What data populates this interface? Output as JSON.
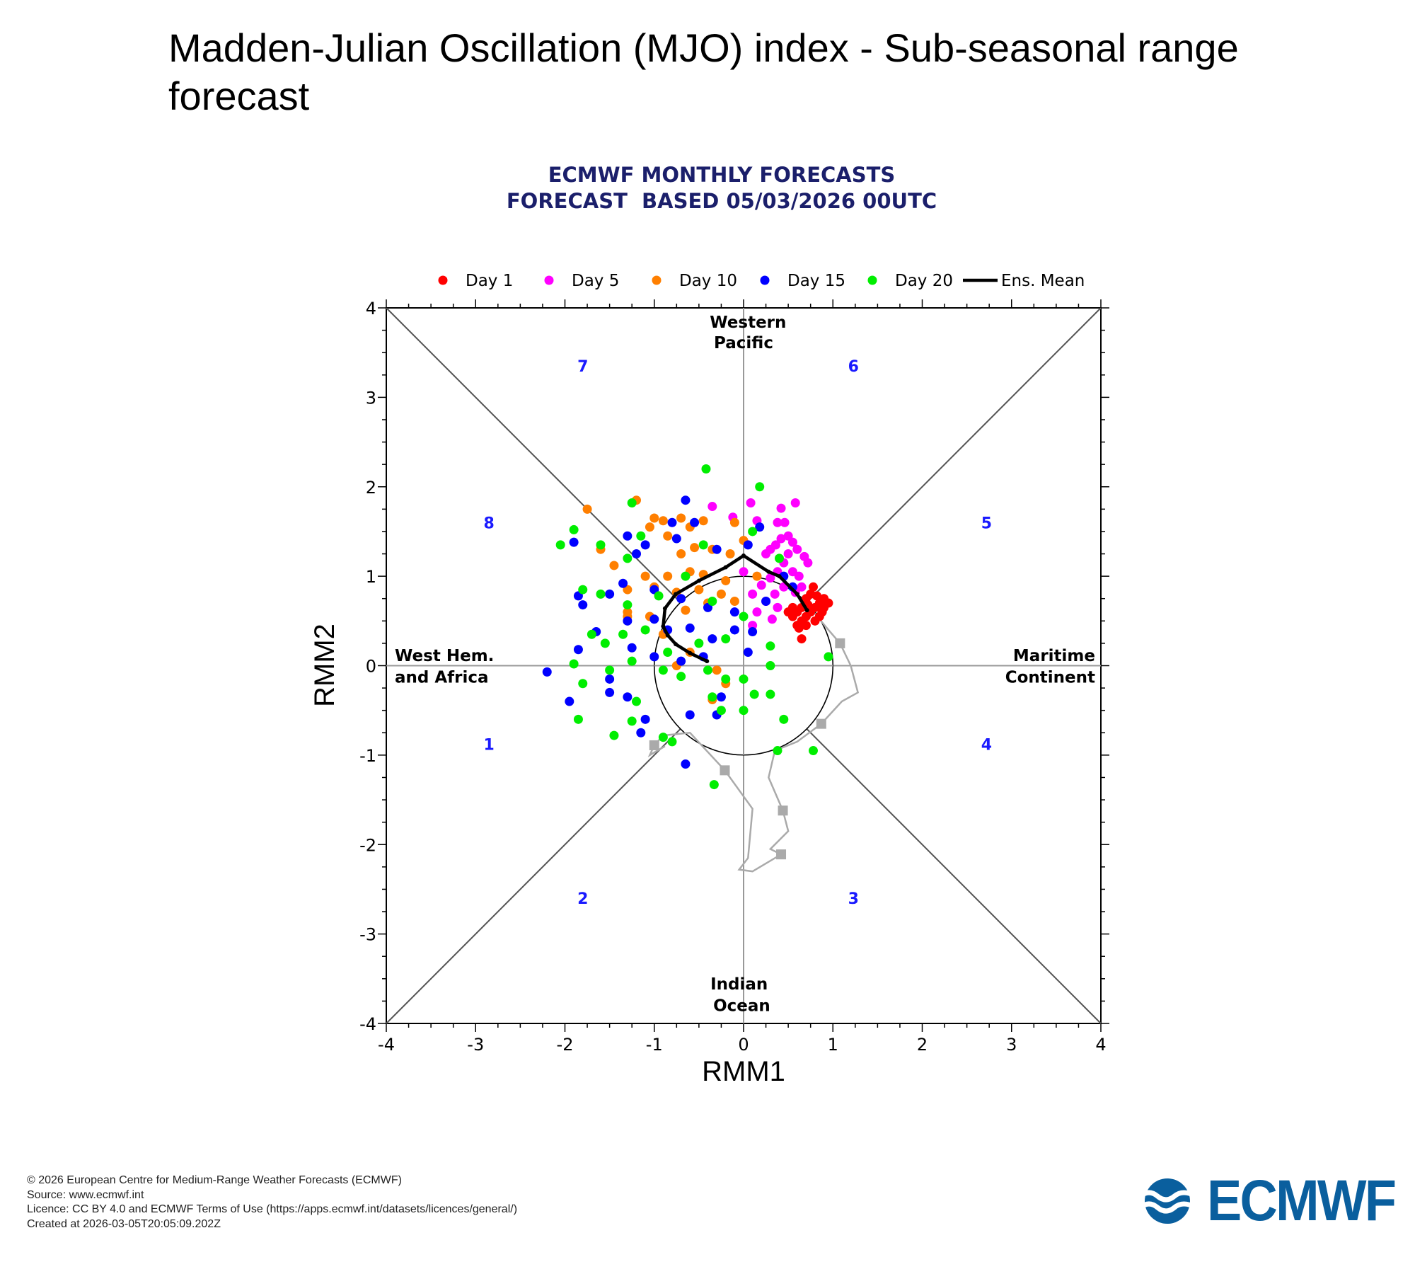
{
  "page_title": "Madden-Julian Oscillation (MJO) index - Sub-seasonal range forecast",
  "footer": {
    "lines": [
      "© 2026 European Centre for Medium-Range Weather Forecasts (ECMWF)",
      "Source: www.ecmwf.int",
      "Licence: CC BY 4.0 and ECMWF Terms of Use (https://apps.ecmwf.int/datasets/licences/general/)",
      "Created at 2026-03-05T20:05:09.202Z"
    ],
    "logo_text": "ECMWF"
  },
  "chart_data": {
    "type": "scatter",
    "title": "ECMWF MONTHLY FORECASTS",
    "subtitle": "FORECAST  BASED 05/03/2026 00UTC",
    "xlabel": "RMM1",
    "ylabel": "RMM2",
    "xlim": [
      -4,
      4
    ],
    "ylim": [
      -4,
      4
    ],
    "xticks": [
      "-4",
      "-3",
      "-2",
      "-1",
      "0",
      "1",
      "2",
      "3",
      "4"
    ],
    "yticks": [
      "-4",
      "-3",
      "-2",
      "-1",
      "0",
      "1",
      "2",
      "3",
      "4"
    ],
    "legend_position": "top",
    "regions": {
      "top": [
        "Western",
        "Pacific"
      ],
      "bottom": [
        "Indian",
        "Ocean"
      ],
      "left": [
        "West Hem.",
        "and Africa"
      ],
      "right": [
        "Maritime",
        "Continent"
      ]
    },
    "phases": [
      {
        "label": "1",
        "x": -2.85,
        "y": -0.88
      },
      {
        "label": "2",
        "x": -1.8,
        "y": -2.6
      },
      {
        "label": "3",
        "x": 1.23,
        "y": -2.6
      },
      {
        "label": "4",
        "x": 2.72,
        "y": -0.88
      },
      {
        "label": "5",
        "x": 2.72,
        "y": 1.6
      },
      {
        "label": "6",
        "x": 1.23,
        "y": 3.35
      },
      {
        "label": "7",
        "x": -1.8,
        "y": 3.35
      },
      {
        "label": "8",
        "x": -2.85,
        "y": 1.6
      }
    ],
    "series": [
      {
        "name": "Day 1",
        "color": "#ff0000",
        "points": [
          [
            0.55,
            0.55
          ],
          [
            0.6,
            0.6
          ],
          [
            0.65,
            0.5
          ],
          [
            0.7,
            0.55
          ],
          [
            0.75,
            0.6
          ],
          [
            0.8,
            0.65
          ],
          [
            0.85,
            0.7
          ],
          [
            0.9,
            0.65
          ],
          [
            0.95,
            0.7
          ],
          [
            0.75,
            0.8
          ],
          [
            0.7,
            0.75
          ],
          [
            0.65,
            0.65
          ],
          [
            0.6,
            0.45
          ],
          [
            0.7,
            0.45
          ],
          [
            0.8,
            0.5
          ],
          [
            0.85,
            0.55
          ],
          [
            0.9,
            0.75
          ],
          [
            0.78,
            0.88
          ],
          [
            0.55,
            0.65
          ],
          [
            0.5,
            0.6
          ],
          [
            0.65,
            0.3
          ],
          [
            0.62,
            0.42
          ],
          [
            0.88,
            0.6
          ],
          [
            0.72,
            0.68
          ],
          [
            0.82,
            0.78
          ]
        ]
      },
      {
        "name": "Day 5",
        "color": "#ff00ff",
        "points": [
          [
            0.08,
            1.82
          ],
          [
            0.58,
            1.82
          ],
          [
            0.42,
            1.76
          ],
          [
            -0.12,
            1.66
          ],
          [
            0.15,
            1.62
          ],
          [
            0.38,
            1.6
          ],
          [
            0.46,
            1.6
          ],
          [
            0.5,
            1.45
          ],
          [
            0.42,
            1.42
          ],
          [
            0.36,
            1.35
          ],
          [
            0.55,
            1.38
          ],
          [
            0.6,
            1.3
          ],
          [
            0.3,
            1.3
          ],
          [
            0.25,
            1.25
          ],
          [
            0.5,
            1.25
          ],
          [
            0.68,
            1.22
          ],
          [
            0.72,
            1.15
          ],
          [
            0.45,
            1.15
          ],
          [
            0.55,
            1.05
          ],
          [
            0.62,
            1.0
          ],
          [
            0.38,
            1.05
          ],
          [
            0.3,
            0.98
          ],
          [
            0.2,
            0.9
          ],
          [
            0.45,
            0.88
          ],
          [
            0.58,
            0.82
          ],
          [
            0.1,
            0.8
          ],
          [
            0.25,
            0.72
          ],
          [
            0.38,
            0.65
          ],
          [
            0.15,
            0.6
          ],
          [
            0.32,
            0.52
          ],
          [
            0.1,
            0.45
          ],
          [
            -0.35,
            1.78
          ],
          [
            0.0,
            1.05
          ],
          [
            0.65,
            0.88
          ],
          [
            0.35,
            0.8
          ]
        ]
      },
      {
        "name": "Day 10",
        "color": "#ff7f00",
        "points": [
          [
            -1.75,
            1.75
          ],
          [
            -1.2,
            1.85
          ],
          [
            -0.7,
            1.65
          ],
          [
            -0.45,
            1.62
          ],
          [
            -1.0,
            1.65
          ],
          [
            -0.9,
            1.62
          ],
          [
            -1.05,
            1.55
          ],
          [
            -0.6,
            1.55
          ],
          [
            -0.1,
            1.6
          ],
          [
            -1.6,
            1.3
          ],
          [
            -1.45,
            1.12
          ],
          [
            -0.85,
            1.45
          ],
          [
            -0.55,
            1.32
          ],
          [
            -0.7,
            1.25
          ],
          [
            -0.35,
            1.3
          ],
          [
            0.0,
            1.4
          ],
          [
            -0.15,
            1.25
          ],
          [
            -1.1,
            1.0
          ],
          [
            -0.85,
            1.0
          ],
          [
            -0.6,
            1.05
          ],
          [
            -0.45,
            1.02
          ],
          [
            -0.2,
            0.95
          ],
          [
            -1.3,
            0.85
          ],
          [
            -1.0,
            0.88
          ],
          [
            -0.75,
            0.82
          ],
          [
            -0.5,
            0.85
          ],
          [
            -0.25,
            0.8
          ],
          [
            -1.3,
            0.6
          ],
          [
            -1.05,
            0.55
          ],
          [
            -0.65,
            0.62
          ],
          [
            -0.4,
            0.7
          ],
          [
            -0.1,
            0.72
          ],
          [
            -1.3,
            0.55
          ],
          [
            -0.9,
            0.35
          ],
          [
            -0.6,
            0.15
          ],
          [
            -0.3,
            -0.05
          ],
          [
            -0.2,
            -0.2
          ],
          [
            -0.35,
            -0.38
          ],
          [
            -0.75,
            0.0
          ],
          [
            0.15,
            1.0
          ]
        ]
      },
      {
        "name": "Day 15",
        "color": "#0000ff",
        "points": [
          [
            -0.65,
            1.85
          ],
          [
            -0.55,
            1.6
          ],
          [
            -0.8,
            1.6
          ],
          [
            -1.3,
            1.45
          ],
          [
            -1.1,
            1.35
          ],
          [
            -1.9,
            1.38
          ],
          [
            -1.2,
            1.25
          ],
          [
            -0.75,
            1.42
          ],
          [
            -0.3,
            1.3
          ],
          [
            0.05,
            1.35
          ],
          [
            0.18,
            1.55
          ],
          [
            -1.35,
            0.92
          ],
          [
            -1.5,
            0.8
          ],
          [
            -1.0,
            0.85
          ],
          [
            -0.7,
            0.75
          ],
          [
            -0.4,
            0.65
          ],
          [
            -0.1,
            0.6
          ],
          [
            0.25,
            0.72
          ],
          [
            0.55,
            0.88
          ],
          [
            0.45,
            1.0
          ],
          [
            -1.85,
            0.78
          ],
          [
            -1.8,
            0.68
          ],
          [
            -1.65,
            0.38
          ],
          [
            -1.3,
            0.5
          ],
          [
            -1.0,
            0.52
          ],
          [
            -0.85,
            0.4
          ],
          [
            -0.6,
            0.42
          ],
          [
            -0.35,
            0.3
          ],
          [
            -0.1,
            0.4
          ],
          [
            0.1,
            0.38
          ],
          [
            -1.85,
            0.18
          ],
          [
            -1.25,
            0.2
          ],
          [
            -1.0,
            0.1
          ],
          [
            -0.7,
            0.05
          ],
          [
            -0.45,
            0.1
          ],
          [
            0.05,
            0.15
          ],
          [
            -2.2,
            -0.07
          ],
          [
            -1.5,
            -0.15
          ],
          [
            -1.3,
            -0.35
          ],
          [
            -1.5,
            -0.3
          ],
          [
            -1.95,
            -0.4
          ],
          [
            -0.6,
            -0.55
          ],
          [
            -0.25,
            -0.35
          ],
          [
            -1.1,
            -0.6
          ],
          [
            -0.65,
            -1.1
          ],
          [
            -1.15,
            -0.75
          ],
          [
            -0.3,
            -0.55
          ]
        ]
      },
      {
        "name": "Day 20",
        "color": "#00ee00",
        "points": [
          [
            -0.42,
            2.2
          ],
          [
            0.18,
            2.0
          ],
          [
            -1.25,
            1.82
          ],
          [
            -1.9,
            1.52
          ],
          [
            -2.05,
            1.35
          ],
          [
            -1.6,
            1.35
          ],
          [
            -1.3,
            1.2
          ],
          [
            -1.15,
            1.45
          ],
          [
            -0.45,
            1.35
          ],
          [
            0.1,
            1.5
          ],
          [
            0.4,
            1.2
          ],
          [
            -1.8,
            0.85
          ],
          [
            -1.6,
            0.8
          ],
          [
            -1.3,
            0.68
          ],
          [
            -0.95,
            0.78
          ],
          [
            -0.65,
            1.0
          ],
          [
            -0.35,
            0.72
          ],
          [
            0.0,
            0.55
          ],
          [
            -1.7,
            0.35
          ],
          [
            -1.55,
            0.25
          ],
          [
            -1.35,
            0.35
          ],
          [
            -1.1,
            0.4
          ],
          [
            -0.85,
            0.15
          ],
          [
            -0.5,
            0.25
          ],
          [
            -0.2,
            0.3
          ],
          [
            0.3,
            0.22
          ],
          [
            -1.9,
            0.02
          ],
          [
            -1.5,
            -0.05
          ],
          [
            -1.25,
            0.05
          ],
          [
            -0.9,
            -0.05
          ],
          [
            -0.7,
            -0.12
          ],
          [
            -0.4,
            -0.05
          ],
          [
            -0.2,
            -0.15
          ],
          [
            0.3,
            0.0
          ],
          [
            -1.8,
            -0.2
          ],
          [
            -1.2,
            -0.4
          ],
          [
            -0.35,
            -0.35
          ],
          [
            0.0,
            -0.15
          ],
          [
            0.3,
            -0.32
          ],
          [
            0.12,
            -0.32
          ],
          [
            -1.85,
            -0.6
          ],
          [
            -1.45,
            -0.78
          ],
          [
            -1.25,
            -0.62
          ],
          [
            -0.9,
            -0.8
          ],
          [
            -0.8,
            -0.85
          ],
          [
            -0.25,
            -0.5
          ],
          [
            0.95,
            0.1
          ],
          [
            0.45,
            -0.6
          ],
          [
            0.38,
            -0.95
          ],
          [
            0.78,
            -0.95
          ],
          [
            -0.33,
            -1.33
          ],
          [
            0.0,
            -0.5
          ]
        ]
      }
    ],
    "ensemble_mean": {
      "name": "Ens. Mean",
      "color": "#000000",
      "points": [
        [
          0.71,
          0.62
        ],
        [
          0.6,
          0.8
        ],
        [
          0.4,
          1.0
        ],
        [
          0.28,
          1.05
        ],
        [
          0.0,
          1.23
        ],
        [
          -0.2,
          1.1
        ],
        [
          -0.5,
          0.95
        ],
        [
          -0.76,
          0.8
        ],
        [
          -0.88,
          0.64
        ],
        [
          -0.9,
          0.44
        ],
        [
          -0.85,
          0.34
        ],
        [
          -0.76,
          0.24
        ],
        [
          -0.6,
          0.14
        ],
        [
          -0.41,
          0.05
        ]
      ]
    },
    "observed": {
      "color": "#aaaaaa",
      "points": [
        [
          0.7,
          0.7
        ],
        [
          0.95,
          0.4
        ],
        [
          1.08,
          0.25
        ],
        [
          1.2,
          0.0
        ],
        [
          1.28,
          -0.3
        ],
        [
          1.1,
          -0.4
        ],
        [
          0.87,
          -0.65
        ],
        [
          0.6,
          -0.85
        ],
        [
          0.35,
          -0.95
        ],
        [
          0.28,
          -1.25
        ],
        [
          0.44,
          -1.62
        ],
        [
          0.5,
          -1.85
        ],
        [
          0.3,
          -2.05
        ],
        [
          0.42,
          -2.11
        ],
        [
          0.1,
          -2.3
        ],
        [
          -0.05,
          -2.28
        ],
        [
          0.05,
          -2.15
        ],
        [
          0.1,
          -1.6
        ],
        [
          -0.21,
          -1.17
        ],
        [
          -0.6,
          -0.75
        ],
        [
          -0.9,
          -0.78
        ],
        [
          -1.0,
          -0.89
        ],
        [
          -1.05,
          -1.0
        ],
        [
          -0.88,
          -0.9
        ]
      ],
      "markers": [
        [
          1.08,
          0.25
        ],
        [
          0.87,
          -0.65
        ],
        [
          0.44,
          -1.62
        ],
        [
          0.42,
          -2.11
        ],
        [
          -0.21,
          -1.17
        ],
        [
          -1.0,
          -0.89
        ]
      ]
    },
    "reference_circle_radius": 1
  }
}
